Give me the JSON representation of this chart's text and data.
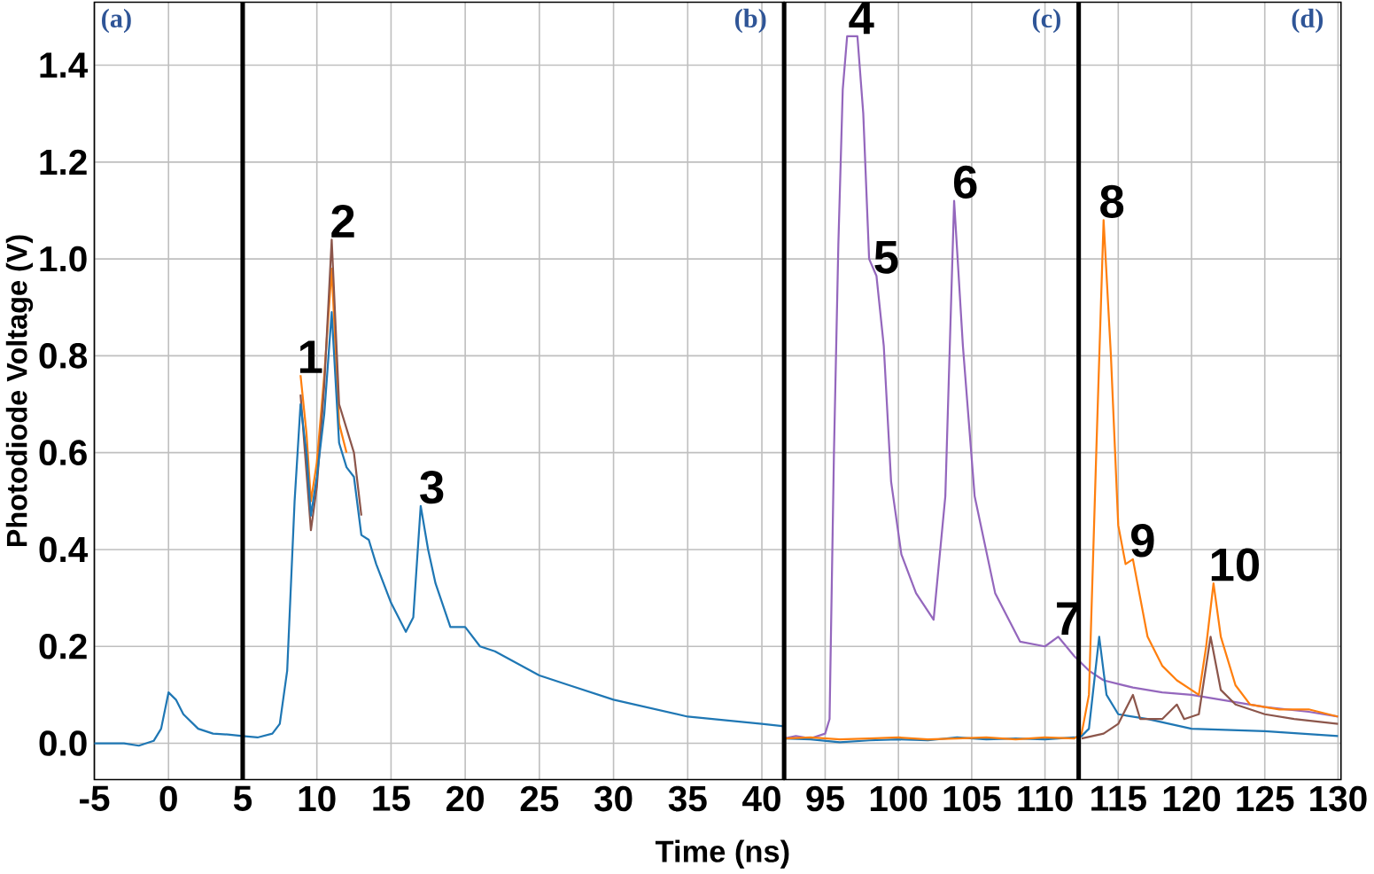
{
  "chart_data": [
    {
      "type": "line",
      "xlabel": "Time (ns)",
      "ylabel": "Photodiode Voltage (V)",
      "xlim": [
        -5,
        41.5
      ],
      "ylim": [
        -0.075,
        1.53
      ],
      "xticks": [
        -5,
        0,
        5,
        10,
        15,
        20,
        25,
        30,
        35,
        40
      ],
      "yticks": [
        {
          "value": 0,
          "label": "0.0"
        },
        0.2,
        0.4,
        0.6,
        0.8,
        {
          "value": 1,
          "label": "1.0"
        },
        1.2,
        1.4
      ],
      "grid": true,
      "ref_lines": [
        {
          "axis": "x",
          "value": 5,
          "color": "#000000"
        }
      ],
      "annotations": [
        "(a)",
        "(b)",
        {
          "text": "1",
          "x": 8.9,
          "y": 0.76
        },
        {
          "text": "2",
          "x": 11.1,
          "y": 1.04
        },
        {
          "text": "3",
          "x": 17.1,
          "y": 0.49
        }
      ],
      "series": [
        {
          "color": "#ff7f0e",
          "x": [
            8.9,
            9.3,
            9.6,
            10,
            10.5,
            11,
            11.5,
            12
          ],
          "values": [
            0.76,
            0.64,
            0.5,
            0.58,
            0.76,
            0.98,
            0.66,
            0.6
          ]
        },
        {
          "color": "#8c564b",
          "x": [
            8.9,
            9.3,
            9.6,
            10,
            10.5,
            11,
            11.5,
            12,
            12.5,
            13
          ],
          "values": [
            0.72,
            0.56,
            0.44,
            0.53,
            0.74,
            1.04,
            0.7,
            0.65,
            0.6,
            0.47
          ]
        },
        {
          "color": "#1f77b4",
          "x": [
            -5,
            -3,
            -2,
            -1,
            -0.5,
            0,
            0.5,
            1,
            2,
            3,
            4,
            5,
            6,
            7,
            7.5,
            8,
            8.5,
            8.9,
            9.3,
            9.6,
            10,
            10.5,
            11,
            11.5,
            12,
            12.5,
            13,
            13.5,
            14,
            15,
            16,
            16.5,
            17,
            17.5,
            18,
            19,
            20,
            21,
            22,
            25,
            27,
            30,
            35,
            40,
            41.5
          ],
          "values": [
            0,
            0,
            -0.005,
            0.005,
            0.03,
            0.105,
            0.09,
            0.06,
            0.03,
            0.02,
            0.018,
            0.015,
            0.012,
            0.02,
            0.04,
            0.15,
            0.5,
            0.7,
            0.6,
            0.47,
            0.55,
            0.68,
            0.89,
            0.62,
            0.57,
            0.55,
            0.43,
            0.42,
            0.37,
            0.29,
            0.23,
            0.26,
            0.49,
            0.4,
            0.33,
            0.24,
            0.24,
            0.2,
            0.19,
            0.14,
            0.12,
            0.09,
            0.055,
            0.04,
            0.035
          ]
        }
      ]
    },
    {
      "type": "line",
      "xlim": [
        92.2,
        130.2
      ],
      "ylim": [
        -0.075,
        1.53
      ],
      "xticks": [
        95,
        100,
        105,
        110,
        115,
        120,
        125,
        130
      ],
      "yticks": [
        {
          "value": 0,
          "label": null
        },
        {
          "value": 0.2,
          "label": null
        },
        {
          "value": 0.4,
          "label": null
        },
        {
          "value": 0.6,
          "label": null
        },
        {
          "value": 0.8,
          "label": null
        },
        {
          "value": 1,
          "label": null
        },
        {
          "value": 1.2,
          "label": null
        },
        {
          "value": 1.4,
          "label": null
        }
      ],
      "tick_labels": "x",
      "grid": true,
      "ref_lines": [
        {
          "axis": "x",
          "value": 112.3,
          "color": "#000000"
        }
      ],
      "annotations": [
        "(c)",
        "(d)",
        {
          "text": "4",
          "x": 96.8,
          "y": 1.46
        },
        {
          "text": "5",
          "x": 98.5,
          "y": 0.965
        },
        {
          "text": "6",
          "x": 103.9,
          "y": 1.12
        },
        {
          "text": "7",
          "x": 110.9,
          "y": 0.22
        },
        {
          "text": "8",
          "x": 113.9,
          "y": 1.08
        },
        {
          "text": "9",
          "x": 116,
          "y": 0.38
        },
        {
          "text": "10",
          "x": 121.4,
          "y": 0.33
        }
      ],
      "series": [
        {
          "color": "#9467bd",
          "x": [
            92.2,
            93,
            94,
            95,
            95.3,
            95.6,
            95.9,
            96.2,
            96.5,
            97.2,
            97.6,
            98,
            98.5,
            99,
            99.5,
            100.2,
            101.2,
            102.4,
            103.2,
            103.8,
            104.4,
            105.2,
            106.6,
            108.3,
            110,
            110.9,
            112,
            113,
            114,
            116,
            118,
            120,
            122,
            125,
            128,
            130
          ],
          "values": [
            0.01,
            0.015,
            0.01,
            0.02,
            0.05,
            0.6,
            1.03,
            1.35,
            1.46,
            1.46,
            1.3,
            1.0,
            0.965,
            0.82,
            0.54,
            0.39,
            0.31,
            0.255,
            0.51,
            1.12,
            0.82,
            0.51,
            0.31,
            0.21,
            0.2,
            0.22,
            0.18,
            0.15,
            0.13,
            0.115,
            0.105,
            0.1,
            0.09,
            0.075,
            0.065,
            0.055
          ]
        },
        {
          "color": "#1f77b4",
          "x": [
            92.2,
            94,
            96,
            98,
            100,
            102,
            104,
            106,
            108,
            110,
            112,
            112.5,
            113,
            113.7,
            114.2,
            115,
            117,
            120,
            125,
            130
          ],
          "values": [
            0.01,
            0.008,
            0.002,
            0.006,
            0.008,
            0.006,
            0.012,
            0.008,
            0.01,
            0.008,
            0.012,
            0.015,
            0.03,
            0.22,
            0.1,
            0.06,
            0.05,
            0.03,
            0.025,
            0.015
          ]
        },
        {
          "color": "#8c564b",
          "x": [
            112.5,
            114,
            115,
            116,
            116.5,
            118,
            119,
            119.5,
            120.5,
            121.3,
            122,
            123,
            125,
            127,
            130
          ],
          "values": [
            0.01,
            0.02,
            0.04,
            0.1,
            0.05,
            0.05,
            0.08,
            0.05,
            0.06,
            0.22,
            0.11,
            0.08,
            0.06,
            0.05,
            0.04
          ]
        },
        {
          "color": "#ff7f0e",
          "x": [
            92.2,
            94,
            96,
            98,
            100,
            102,
            104,
            106,
            108,
            110,
            112,
            112.5,
            113,
            113.5,
            114,
            114.5,
            115,
            115.5,
            116,
            116.5,
            117,
            118,
            119,
            120.5,
            121,
            121.5,
            122,
            123,
            124,
            126,
            128,
            130
          ],
          "values": [
            0.01,
            0.012,
            0.008,
            0.01,
            0.012,
            0.008,
            0.01,
            0.012,
            0.008,
            0.012,
            0.01,
            0.02,
            0.1,
            0.6,
            1.08,
            0.8,
            0.45,
            0.37,
            0.38,
            0.3,
            0.22,
            0.16,
            0.13,
            0.1,
            0.2,
            0.33,
            0.22,
            0.12,
            0.08,
            0.07,
            0.07,
            0.055
          ]
        }
      ]
    }
  ]
}
